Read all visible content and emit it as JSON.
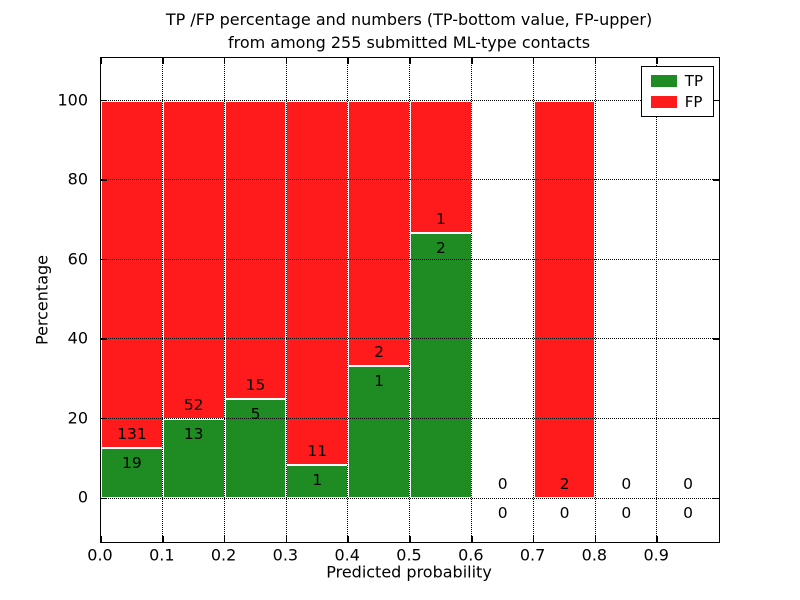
{
  "chart_data": {
    "type": "bar",
    "stacked": true,
    "title_lines": [
      "TP /FP percentage and numbers (TP-bottom value, FP-upper)",
      "from among 255 submitted ML-type contacts"
    ],
    "xlabel": "Predicted probability",
    "ylabel": "Percentage",
    "xlim": [
      0.0,
      1.0
    ],
    "ylim": [
      -11,
      110.7
    ],
    "xticks": [
      "0.0",
      "0.1",
      "0.2",
      "0.3",
      "0.4",
      "0.5",
      "0.6",
      "0.7",
      "0.8",
      "0.9"
    ],
    "yticks": [
      "0",
      "20",
      "40",
      "60",
      "80",
      "100"
    ],
    "grid": true,
    "grid_style": "dotted",
    "colors": {
      "tp": "#1e8c23",
      "fp": "#ff1b1b",
      "bar_edge": "#ffffff",
      "text": "#000000"
    },
    "legend": {
      "position": "upper right",
      "entries": [
        {
          "label": "TP",
          "color": "#1e8c23"
        },
        {
          "label": "FP",
          "color": "#ff1b1b"
        }
      ]
    },
    "bins": [
      {
        "x_range": [
          0.0,
          0.1
        ],
        "tp": 19,
        "fp": 131
      },
      {
        "x_range": [
          0.1,
          0.2
        ],
        "tp": 13,
        "fp": 52
      },
      {
        "x_range": [
          0.2,
          0.3
        ],
        "tp": 5,
        "fp": 15
      },
      {
        "x_range": [
          0.3,
          0.4
        ],
        "tp": 1,
        "fp": 11
      },
      {
        "x_range": [
          0.4,
          0.5
        ],
        "tp": 1,
        "fp": 2
      },
      {
        "x_range": [
          0.5,
          0.6
        ],
        "tp": 2,
        "fp": 1
      },
      {
        "x_range": [
          0.6,
          0.7
        ],
        "tp": 0,
        "fp": 0
      },
      {
        "x_range": [
          0.7,
          0.8
        ],
        "tp": 0,
        "fp": 2
      },
      {
        "x_range": [
          0.8,
          0.9
        ],
        "tp": 0,
        "fp": 0
      },
      {
        "x_range": [
          0.9,
          1.0
        ],
        "tp": 0,
        "fp": 0
      }
    ]
  }
}
